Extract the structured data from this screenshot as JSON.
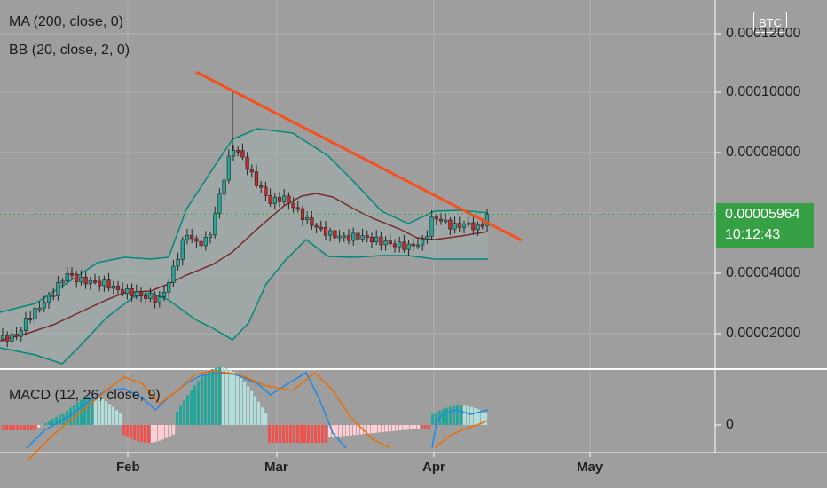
{
  "legend": {
    "ma": "MA (200, close, 0)",
    "bb": "BB (20, close, 2, 0)",
    "macd": "MACD (12, 26, close, 9)"
  },
  "currency_badge": "BTC",
  "price_axis": {
    "ticks": [
      "0.00012000",
      "0.00010000",
      "0.00008000",
      "0.00004000",
      "0.00002000"
    ],
    "macd_zero": "0"
  },
  "current_price": {
    "value": "0.00005964",
    "countdown": "10:12:43"
  },
  "time_axis": [
    "Feb",
    "Mar",
    "Apr",
    "May"
  ],
  "colors": {
    "background": "#9e9e9e",
    "up_candle": "#26a69a",
    "down_candle": "#c62828",
    "trendline": "#f4511e",
    "bollinger": "#00897b",
    "ma": "#7a2a2a",
    "price_tag": "#36a045",
    "macd_line": "#1e88e5",
    "signal_line": "#ef6c00",
    "hist_up_strong": "#26a69a",
    "hist_up_weak": "#b2dfdb",
    "hist_down_strong": "#ef5350",
    "hist_down_weak": "#ffcdd2"
  }
}
